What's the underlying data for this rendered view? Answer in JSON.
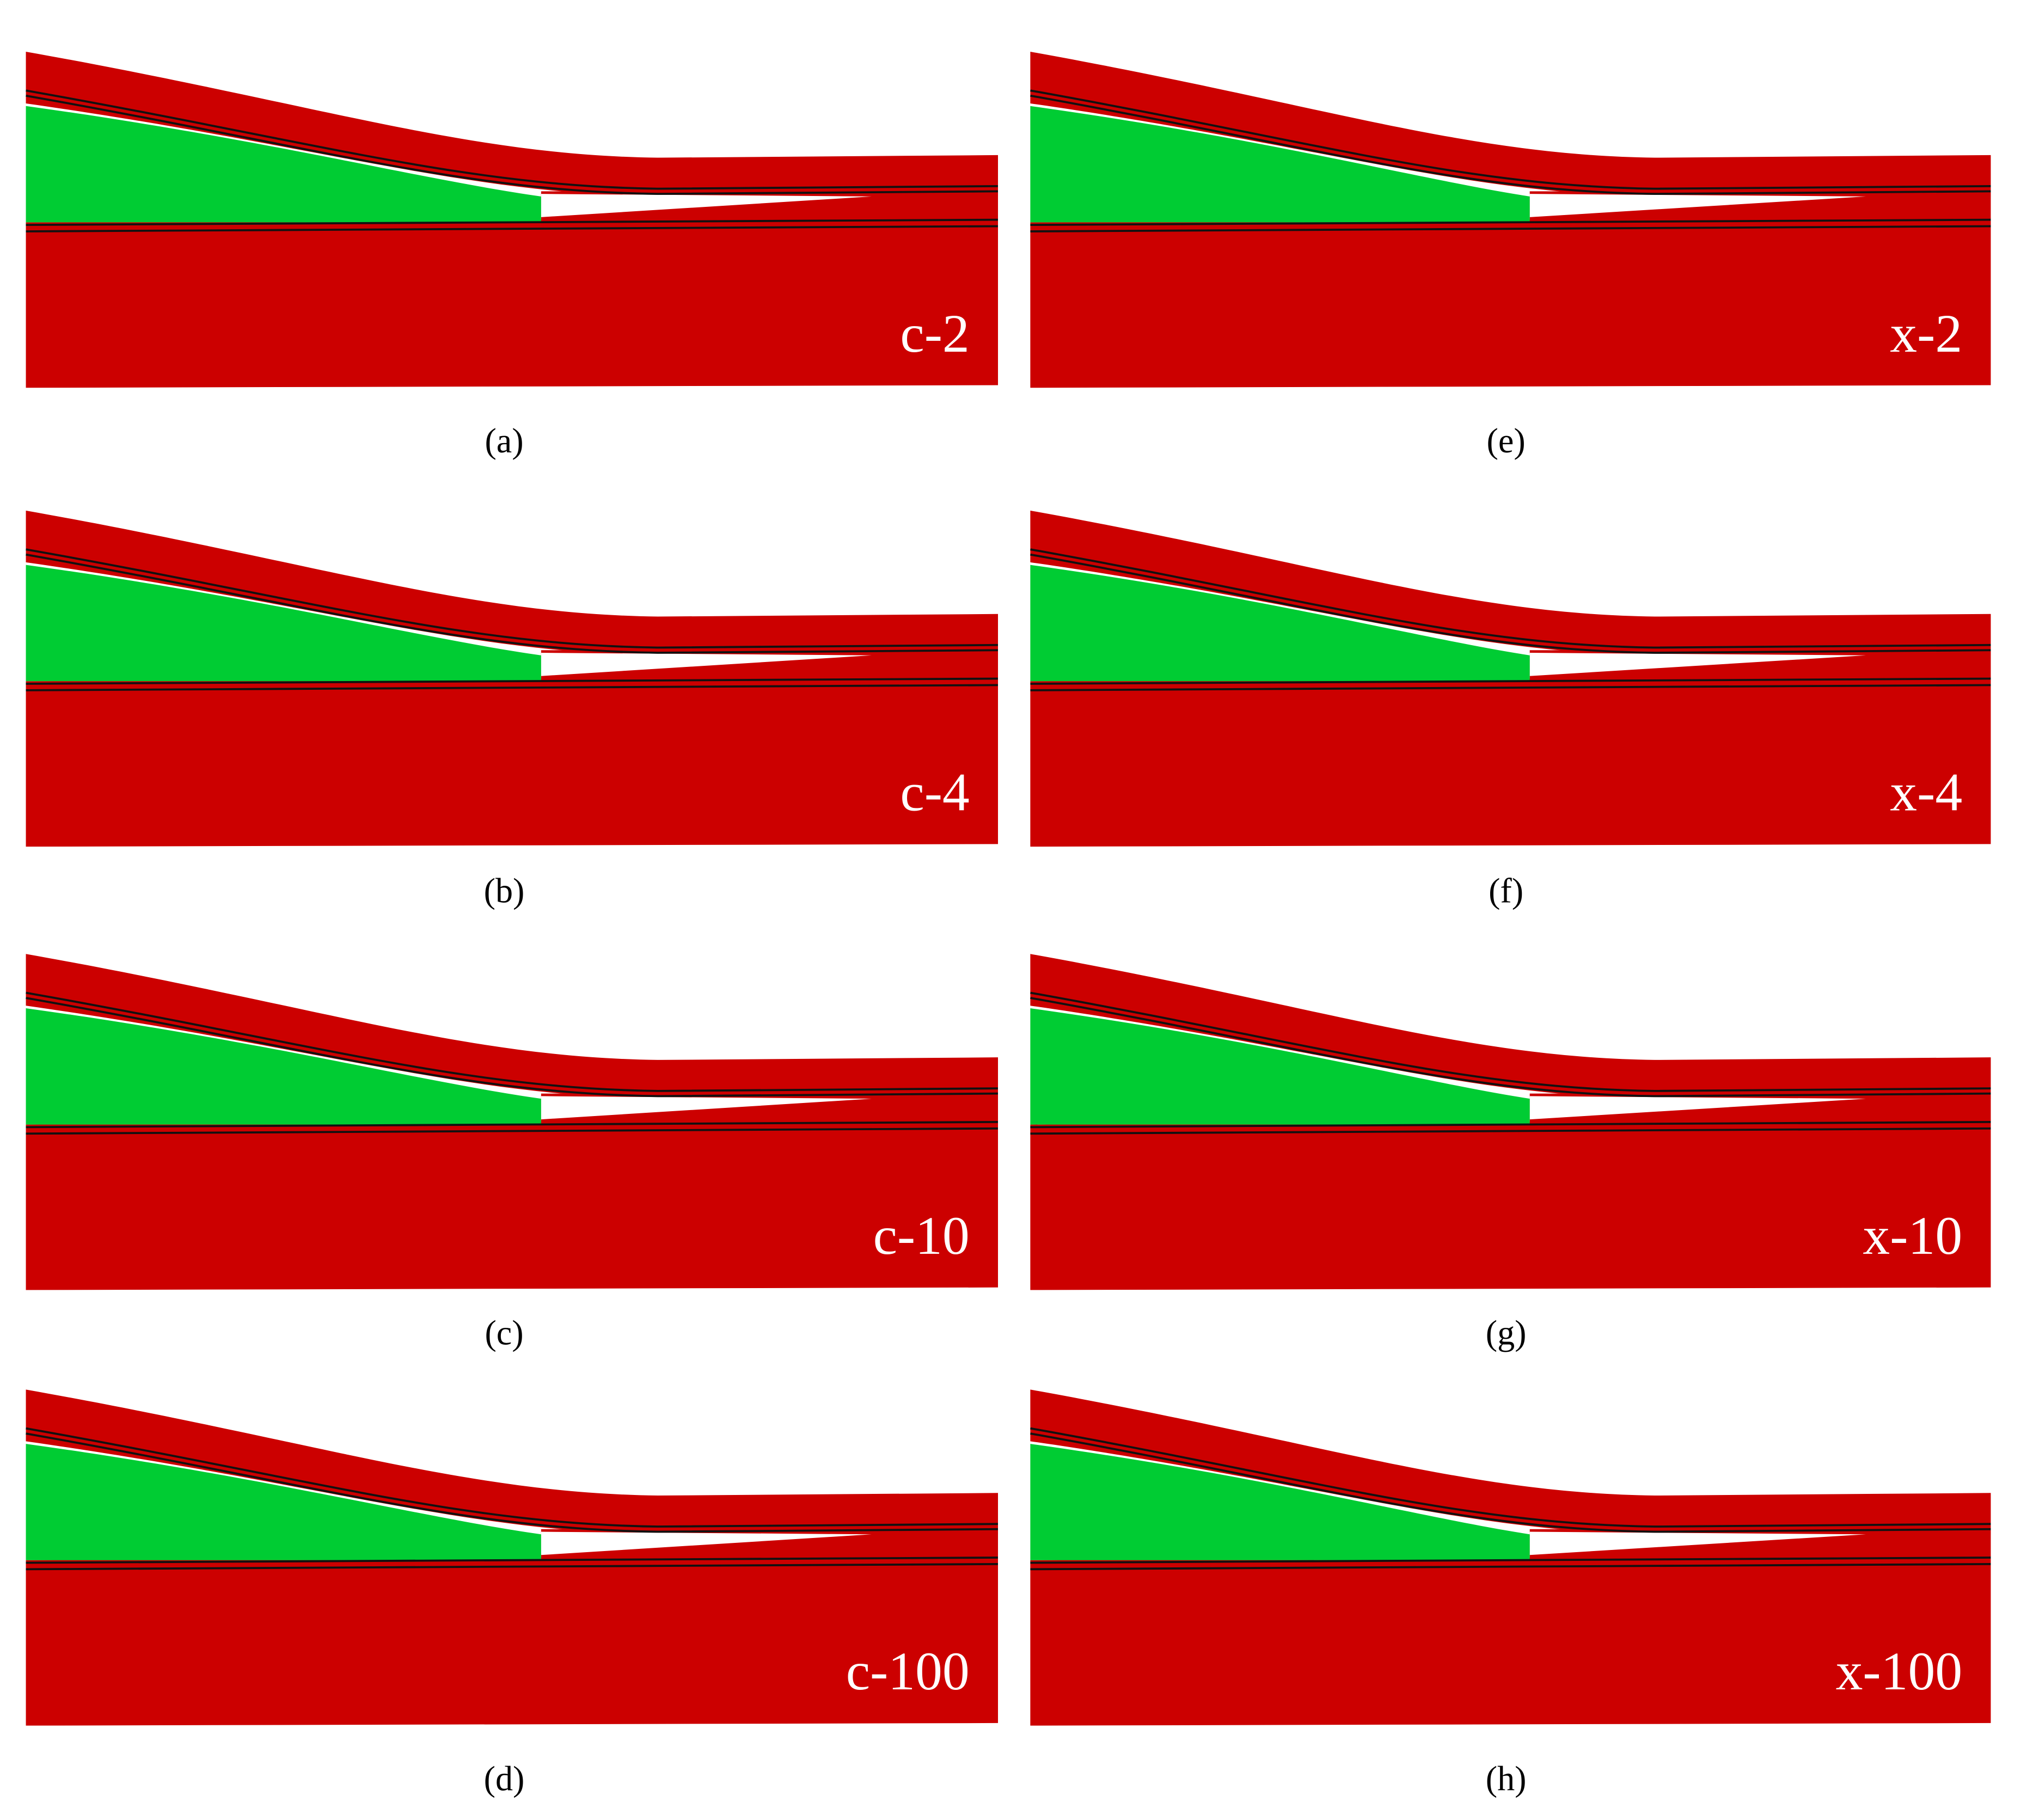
{
  "panels": [
    {
      "label": "c-2",
      "caption": "(a)"
    },
    {
      "label": "c-4",
      "caption": "(b)"
    },
    {
      "label": "c-10",
      "caption": "(c)"
    },
    {
      "label": "c-100",
      "caption": "(d)"
    },
    {
      "label": "x-2",
      "caption": "(e)"
    },
    {
      "label": "x-4",
      "caption": "(f)"
    },
    {
      "label": "x-10",
      "caption": "(g)"
    },
    {
      "label": "x-100",
      "caption": "(h)"
    }
  ]
}
